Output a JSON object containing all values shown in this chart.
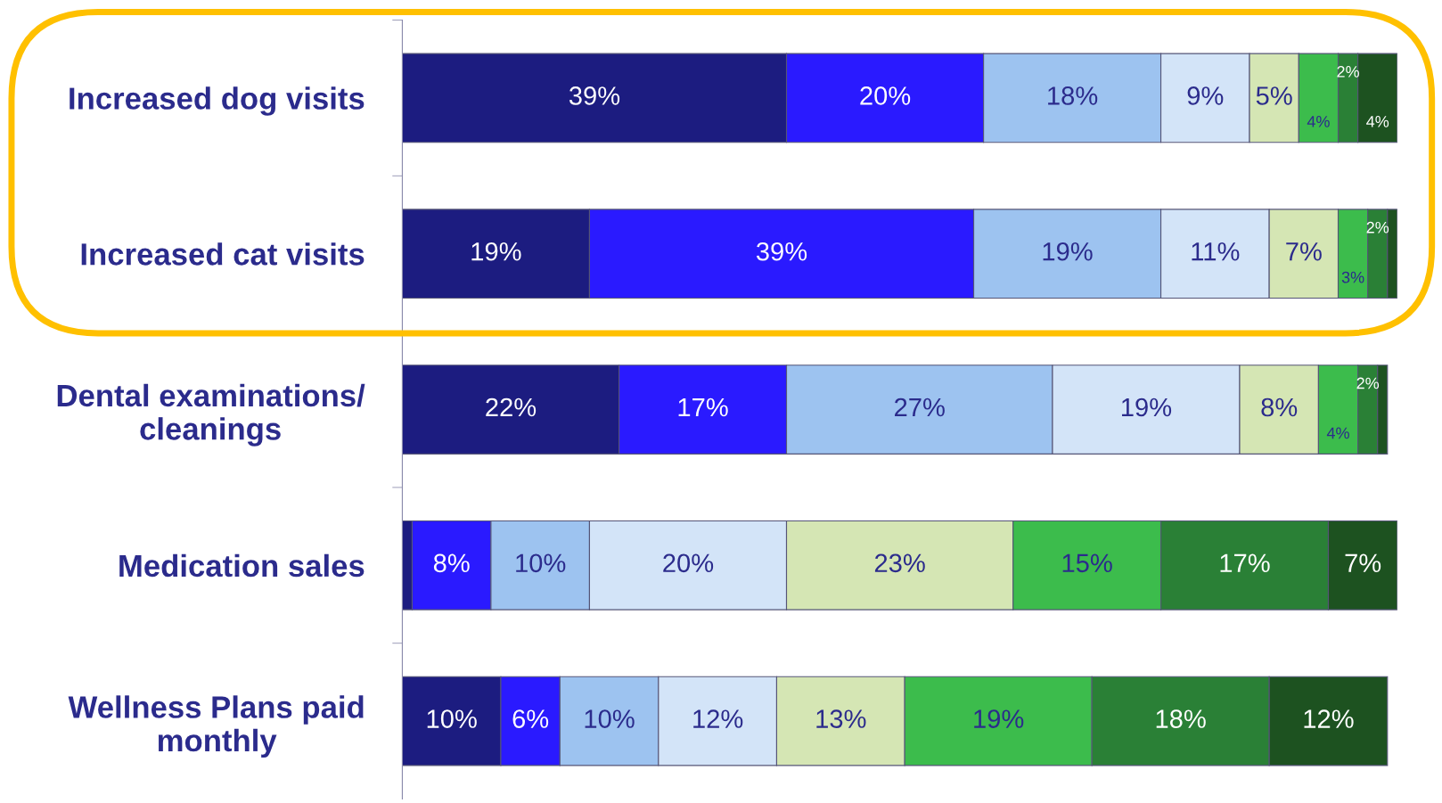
{
  "chart_data": {
    "type": "bar",
    "orientation": "horizontal",
    "stacked": true,
    "legend": false,
    "grid": false,
    "tick_labels": "y",
    "categories": [
      "Increased dog visits",
      "Increased cat visits",
      "Dental examinations/\ncleanings",
      "Medication sales",
      "Wellness Plans paid\nmonthly"
    ],
    "series": [
      {
        "color": "#1c1c80",
        "values": [
          39,
          19,
          22,
          1,
          10
        ],
        "value_labels": [
          "39%",
          "19%",
          "22%",
          null,
          "10%"
        ]
      },
      {
        "color": "#2a1aff",
        "values": [
          20,
          39,
          17,
          8,
          6
        ],
        "value_labels": [
          "20%",
          "39%",
          "17%",
          "8%",
          "6%"
        ]
      },
      {
        "color": "#9dc3f0",
        "values": [
          18,
          19,
          27,
          10,
          10
        ],
        "value_labels": [
          "18%",
          "19%",
          "27%",
          "10%",
          "10%"
        ]
      },
      {
        "color": "#d3e4f8",
        "values": [
          9,
          11,
          19,
          20,
          12
        ],
        "value_labels": [
          "9%",
          "11%",
          "19%",
          "20%",
          "12%"
        ]
      },
      {
        "color": "#d5e6b4",
        "values": [
          5,
          7,
          8,
          23,
          13
        ],
        "value_labels": [
          "5%",
          "7%",
          "8%",
          "23%",
          "13%"
        ]
      },
      {
        "color": "#3cbc4c",
        "values": [
          4,
          3,
          4,
          15,
          19
        ],
        "value_labels": [
          "4%",
          "3%",
          "4%",
          "15%",
          "19%"
        ]
      },
      {
        "color": "#2a8036",
        "values": [
          2,
          2,
          2,
          17,
          18
        ],
        "value_labels": [
          "2%",
          "2%",
          "2%",
          "17%",
          "18%"
        ]
      },
      {
        "color": "#1d5220",
        "values": [
          4,
          1,
          1,
          7,
          12
        ],
        "value_labels": [
          "4%",
          null,
          null,
          "7%",
          "12%"
        ]
      }
    ]
  }
}
